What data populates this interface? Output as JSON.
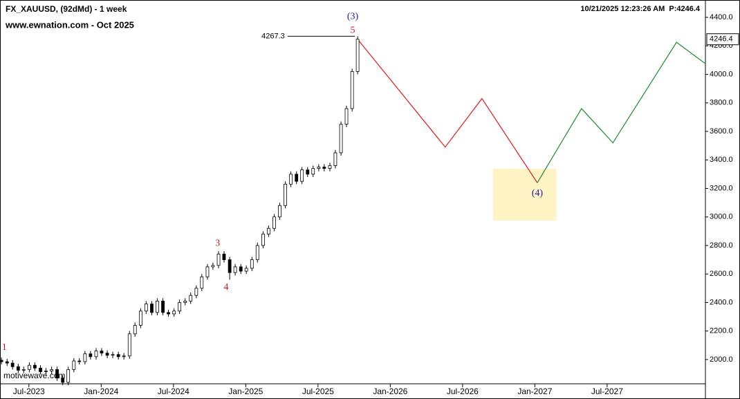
{
  "chart_data": {
    "type": "candlestick",
    "title": "FX_XAUUSD, (92dMd) - 1 week",
    "subtitle": "www.ewnation.com  - Oct 2025",
    "timestamp": "10/21/2025 12:23:26 AM  P:4246.4",
    "watermark": "motivewave.com",
    "price_tag": "4246.4",
    "xlim": [
      2023.3,
      2028.18
    ],
    "ylim": [
      1830,
      4507
    ],
    "xticks": [
      {
        "value": 2023.5,
        "label": "Jul-2023"
      },
      {
        "value": 2024.0,
        "label": "Jan-2024"
      },
      {
        "value": 2024.5,
        "label": "Jul-2024"
      },
      {
        "value": 2025.0,
        "label": "Jan-2025"
      },
      {
        "value": 2025.5,
        "label": "Jul-2025"
      },
      {
        "value": 2026.0,
        "label": "Jan-2026"
      },
      {
        "value": 2026.5,
        "label": "Jul-2026"
      },
      {
        "value": 2027.0,
        "label": "Jan-2027"
      },
      {
        "value": 2027.5,
        "label": "Jul-2027"
      }
    ],
    "yticks": [
      {
        "value": 2000,
        "label": "2000.0"
      },
      {
        "value": 2200,
        "label": "2200.0"
      },
      {
        "value": 2400,
        "label": "2400.0"
      },
      {
        "value": 2600,
        "label": "2600.0"
      },
      {
        "value": 2800,
        "label": "2800.0"
      },
      {
        "value": 3000,
        "label": "3000.0"
      },
      {
        "value": 3200,
        "label": "3200.0"
      },
      {
        "value": 3400,
        "label": "3400.0"
      },
      {
        "value": 3600,
        "label": "3600.0"
      },
      {
        "value": 3800,
        "label": "3800.0"
      },
      {
        "value": 4000,
        "label": "4000.0"
      },
      {
        "value": 4200,
        "label": "4200.0"
      },
      {
        "value": 4400,
        "label": "4400.0"
      }
    ],
    "x": [
      2023.31,
      2023.349,
      2023.387,
      2023.426,
      2023.464,
      2023.503,
      2023.541,
      2023.58,
      2023.618,
      2023.657,
      2023.695,
      2023.734,
      2023.772,
      2023.811,
      2023.849,
      2023.888,
      2023.926,
      2023.965,
      2024.003,
      2024.042,
      2024.08,
      2024.119,
      2024.157,
      2024.196,
      2024.234,
      2024.273,
      2024.311,
      2024.35,
      2024.388,
      2024.427,
      2024.465,
      2024.504,
      2024.542,
      2024.581,
      2024.619,
      2024.658,
      2024.696,
      2024.735,
      2024.773,
      2024.812,
      2024.85,
      2024.889,
      2024.927,
      2024.966,
      2025.004,
      2025.043,
      2025.081,
      2025.12,
      2025.158,
      2025.197,
      2025.235,
      2025.274,
      2025.312,
      2025.351,
      2025.389,
      2025.428,
      2025.466,
      2025.505,
      2025.543,
      2025.582,
      2025.62,
      2025.659,
      2025.697,
      2025.736,
      2025.774
    ],
    "open": [
      1995,
      1985,
      1975,
      1950,
      1925,
      1930,
      1960,
      1940,
      1915,
      1920,
      1930,
      1870,
      1840,
      1930,
      1990,
      1985,
      2040,
      2020,
      2060,
      2045,
      2030,
      2035,
      2020,
      2025,
      2180,
      2240,
      2340,
      2390,
      2330,
      2410,
      2330,
      2320,
      2340,
      2400,
      2410,
      2450,
      2500,
      2580,
      2650,
      2660,
      2740,
      2700,
      2610,
      2650,
      2620,
      2640,
      2700,
      2800,
      2880,
      2920,
      3000,
      3080,
      3230,
      3300,
      3250,
      3330,
      3300,
      3340,
      3350,
      3340,
      3360,
      3450,
      3650,
      3760,
      4020
    ],
    "high": [
      2015,
      2005,
      1995,
      1970,
      1950,
      1980,
      1980,
      1960,
      1940,
      1950,
      1950,
      1890,
      1950,
      2010,
      2010,
      2060,
      2060,
      2080,
      2080,
      2065,
      2055,
      2055,
      2045,
      2200,
      2260,
      2360,
      2410,
      2410,
      2430,
      2430,
      2350,
      2360,
      2420,
      2430,
      2470,
      2520,
      2600,
      2670,
      2680,
      2760,
      2760,
      2720,
      2670,
      2670,
      2660,
      2720,
      2820,
      2900,
      2940,
      3020,
      3100,
      3250,
      3320,
      3320,
      3350,
      3350,
      3360,
      3370,
      3370,
      3380,
      3470,
      3670,
      3780,
      4040,
      4267.3
    ],
    "low": [
      1965,
      1955,
      1930,
      1905,
      1905,
      1910,
      1920,
      1895,
      1895,
      1900,
      1850,
      1820,
      1820,
      1910,
      1965,
      1965,
      2000,
      2000,
      2025,
      2010,
      2010,
      2000,
      2000,
      2005,
      2160,
      2220,
      2320,
      2310,
      2310,
      2310,
      2300,
      2300,
      2320,
      2380,
      2390,
      2430,
      2480,
      2560,
      2630,
      2640,
      2680,
      2560,
      2590,
      2600,
      2600,
      2620,
      2680,
      2780,
      2860,
      2900,
      2980,
      3060,
      3210,
      3230,
      3230,
      3280,
      3280,
      3320,
      3320,
      3320,
      3340,
      3430,
      3630,
      3740,
      4000
    ],
    "close": [
      1985,
      1975,
      1950,
      1925,
      1930,
      1960,
      1940,
      1915,
      1920,
      1930,
      1870,
      1840,
      1930,
      1990,
      1985,
      2040,
      2020,
      2060,
      2045,
      2030,
      2035,
      2020,
      2025,
      2180,
      2240,
      2340,
      2390,
      2330,
      2410,
      2330,
      2320,
      2340,
      2400,
      2410,
      2450,
      2500,
      2580,
      2650,
      2660,
      2740,
      2700,
      2610,
      2650,
      2620,
      2640,
      2700,
      2800,
      2880,
      2920,
      3000,
      3080,
      3230,
      3300,
      3250,
      3330,
      3300,
      3340,
      3350,
      3340,
      3360,
      3450,
      3650,
      3760,
      4020,
      4246.4
    ],
    "projections": [
      {
        "color": "#e8161c",
        "x": [
          2025.774,
          2026.38,
          2026.634,
          2027.017
        ],
        "y": [
          4246.4,
          3490,
          3830,
          3240
        ]
      },
      {
        "color": "#1e8c2c",
        "x": [
          2027.017,
          2027.323,
          2027.54,
          2027.98,
          2028.18
        ],
        "y": [
          3240,
          3760,
          3520,
          4225,
          4075
        ]
      }
    ],
    "target_zone": {
      "color": "#fdf3c4",
      "x": [
        2026.71,
        2027.15
      ],
      "y": [
        2975,
        3338
      ]
    },
    "annotations": [
      {
        "text": "(3)",
        "color": "#1a1aa8",
        "x": 2025.74,
        "y": 4405
      },
      {
        "text": "5",
        "color": "#d0121b",
        "x": 2025.74,
        "y": 4308
      },
      {
        "text": "1",
        "color": "#d0121b",
        "x": 2023.33,
        "y": 2083
      },
      {
        "text": "3",
        "color": "#d0121b",
        "x": 2024.806,
        "y": 2814
      },
      {
        "text": "4",
        "color": "#d0121b",
        "x": 2024.864,
        "y": 2504
      },
      {
        "text": "(4)",
        "color": "#1a1aa8",
        "x": 2027.017,
        "y": 3164
      }
    ],
    "high_label": {
      "text": "4267.3",
      "x": 2025.27,
      "y": 4267.3
    }
  }
}
